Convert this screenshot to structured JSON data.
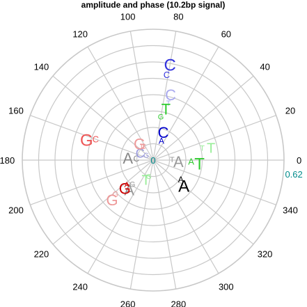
{
  "chart_data": {
    "type": "polar",
    "title": "amplitude and phase (10.2bp signal)",
    "angle_ticks": [
      "0",
      "20",
      "40",
      "60",
      "80",
      "100",
      "120",
      "140",
      "160",
      "180",
      "200",
      "220",
      "240",
      "260",
      "280",
      "300",
      "320",
      "340"
    ],
    "radius_ticks": [
      "0",
      "0.62"
    ],
    "grid": true,
    "radius_max": 0.62,
    "rings": 8,
    "colors": {
      "grid": "#c8c8c8",
      "A": "#000000",
      "A_light": "#999999",
      "C": "#0000cc",
      "C_light": "#aaaaee",
      "G": "#cc0000",
      "G_light": "#ee9999",
      "T": "#33cc33",
      "T_light": "#99ee99",
      "radius_label": "#008b8b"
    },
    "series": [
      {
        "symbol": "C",
        "angle": 80,
        "r": 0.46,
        "size": 24,
        "color": "#3333dd"
      },
      {
        "symbol": "C",
        "angle": 81,
        "r": 0.41,
        "size": 13,
        "color": "#3333dd"
      },
      {
        "symbol": "C",
        "angle": 75,
        "r": 0.32,
        "size": 22,
        "color": "#aaaaee"
      },
      {
        "symbol": "T",
        "angle": 75,
        "r": 0.28,
        "size": 11,
        "color": "#aaaaee"
      },
      {
        "symbol": "T",
        "angle": 76,
        "r": 0.25,
        "size": 22,
        "color": "#33cc33"
      },
      {
        "symbol": "G",
        "angle": 80,
        "r": 0.21,
        "size": 11,
        "color": "#33cc33"
      },
      {
        "symbol": "C",
        "angle": 70,
        "r": 0.14,
        "size": 22,
        "color": "#0000cc"
      },
      {
        "symbol": "A",
        "angle": 67,
        "r": 0.1,
        "size": 12,
        "color": "#0000cc"
      },
      {
        "symbol": "T",
        "angle": 12,
        "r": 0.28,
        "size": 20,
        "color": "#99ee99"
      },
      {
        "symbol": "T",
        "angle": 14,
        "r": 0.24,
        "size": 11,
        "color": "#99ee99"
      },
      {
        "symbol": "T",
        "angle": -4,
        "r": 0.22,
        "size": 24,
        "color": "#33cc33"
      },
      {
        "symbol": "A",
        "angle": -2,
        "r": 0.18,
        "size": 13,
        "color": "#33cc33"
      },
      {
        "symbol": "A",
        "angle": -3,
        "r": 0.12,
        "size": 22,
        "color": "#999999"
      },
      {
        "symbol": "T",
        "angle": 2,
        "r": 0.09,
        "size": 11,
        "color": "#999999"
      },
      {
        "symbol": "A",
        "angle": -40,
        "r": 0.19,
        "size": 24,
        "color": "#000000"
      },
      {
        "symbol": "A",
        "angle": -35,
        "r": 0.16,
        "size": 12,
        "color": "#000000"
      },
      {
        "symbol": "T",
        "angle": 250,
        "r": 0.1,
        "size": 20,
        "color": "#99ee99"
      },
      {
        "symbol": "G",
        "angle": 255,
        "r": 0.08,
        "size": 10,
        "color": "#99ee99"
      },
      {
        "symbol": "A",
        "angle": 231,
        "r": 0.18,
        "size": 22,
        "color": "#999999"
      },
      {
        "symbol": "G",
        "angle": 229,
        "r": 0.15,
        "size": 11,
        "color": "#999999"
      },
      {
        "symbol": "G",
        "angle": 225,
        "r": 0.19,
        "size": 22,
        "color": "#cc0000"
      },
      {
        "symbol": "A",
        "angle": 223,
        "r": 0.17,
        "size": 11,
        "color": "#cc0000"
      },
      {
        "symbol": "G",
        "angle": 224,
        "r": 0.27,
        "size": 22,
        "color": "#ee9999"
      },
      {
        "symbol": "G",
        "angle": 222,
        "r": 0.24,
        "size": 11,
        "color": "#ee9999"
      },
      {
        "symbol": "A",
        "angle": 175,
        "r": 0.12,
        "size": 22,
        "color": "#888888"
      },
      {
        "symbol": "C",
        "angle": 174,
        "r": 0.08,
        "size": 12,
        "color": "#888888"
      },
      {
        "symbol": "C",
        "angle": 152,
        "r": 0.07,
        "size": 18,
        "color": "#9999dd"
      },
      {
        "symbol": "G",
        "angle": 145,
        "r": 0.04,
        "size": 10,
        "color": "#9999dd"
      },
      {
        "symbol": "G",
        "angle": 130,
        "r": 0.1,
        "size": 22,
        "color": "#ee9999"
      },
      {
        "symbol": "C",
        "angle": 125,
        "r": 0.08,
        "size": 11,
        "color": "#ee9999"
      },
      {
        "symbol": "G",
        "angle": 163,
        "r": 0.33,
        "size": 24,
        "color": "#ee5555"
      },
      {
        "symbol": "C",
        "angle": 160,
        "r": 0.29,
        "size": 13,
        "color": "#ee5555"
      }
    ]
  }
}
